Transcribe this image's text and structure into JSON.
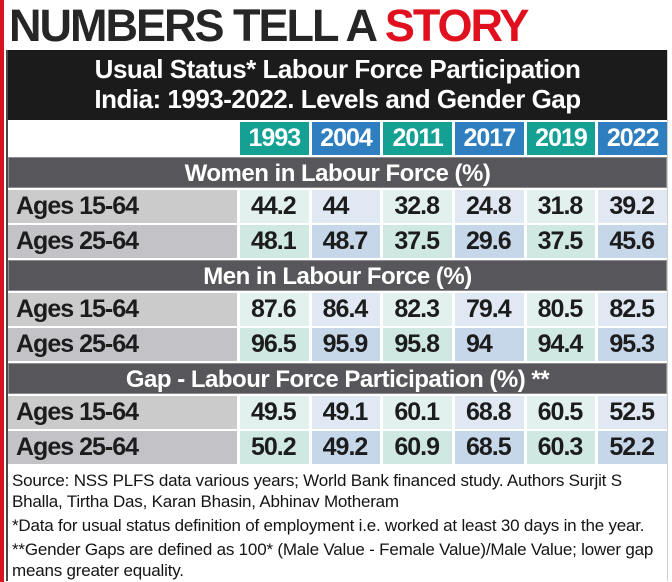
{
  "title": {
    "black": "NUMBERS TELL A ",
    "red": "STORY"
  },
  "header": {
    "line1": "Usual Status* Labour Force Participation",
    "line2": "India: 1993-2022. Levels and Gender Gap"
  },
  "chart_data": {
    "type": "table",
    "title": "Usual Status* Labour Force Participation India: 1993-2022. Levels and Gender Gap",
    "columns": [
      "1993",
      "2004",
      "2011",
      "2017",
      "2019",
      "2022"
    ],
    "sections": [
      {
        "name": "Women in Labour Force (%)",
        "rows": [
          {
            "label": "Ages 15-64",
            "values": [
              44.2,
              44,
              32.8,
              24.8,
              31.8,
              39.2
            ]
          },
          {
            "label": "Ages 25-64",
            "values": [
              48.1,
              48.7,
              37.5,
              29.6,
              37.5,
              45.6
            ]
          }
        ]
      },
      {
        "name": "Men in Labour Force (%)",
        "rows": [
          {
            "label": "Ages 15-64",
            "values": [
              87.6,
              86.4,
              82.3,
              79.4,
              80.5,
              82.5
            ]
          },
          {
            "label": "Ages 25-64",
            "values": [
              96.5,
              95.9,
              95.8,
              94,
              94.4,
              95.3
            ]
          }
        ]
      },
      {
        "name": "Gap - Labour Force Participation (%) **",
        "rows": [
          {
            "label": "Ages 15-64",
            "values": [
              49.5,
              49.1,
              60.1,
              68.8,
              60.5,
              52.5
            ]
          },
          {
            "label": "Ages 25-64",
            "values": [
              50.2,
              49.2,
              60.9,
              68.5,
              60.3,
              52.2
            ]
          }
        ]
      }
    ]
  },
  "footnotes": {
    "source": "Source: NSS PLFS data various years; World Bank financed study. Authors Surjit S Bhalla, Tirtha Das, Karan Bhasin, Abhinav Motheram",
    "note1": "*Data for usual status definition of employment i.e. worked at least 30 days in the year.",
    "note2": "**Gender Gaps are defined as 100* (Male Value - Female Value)/Male Value; lower gap means greater equality."
  },
  "colors": {
    "accent_red": "#e0101f",
    "year_teal": "#14a093",
    "year_blue": "#2e7ec0",
    "section_bar": "#57575b",
    "band_black": "#1b1b1b"
  }
}
